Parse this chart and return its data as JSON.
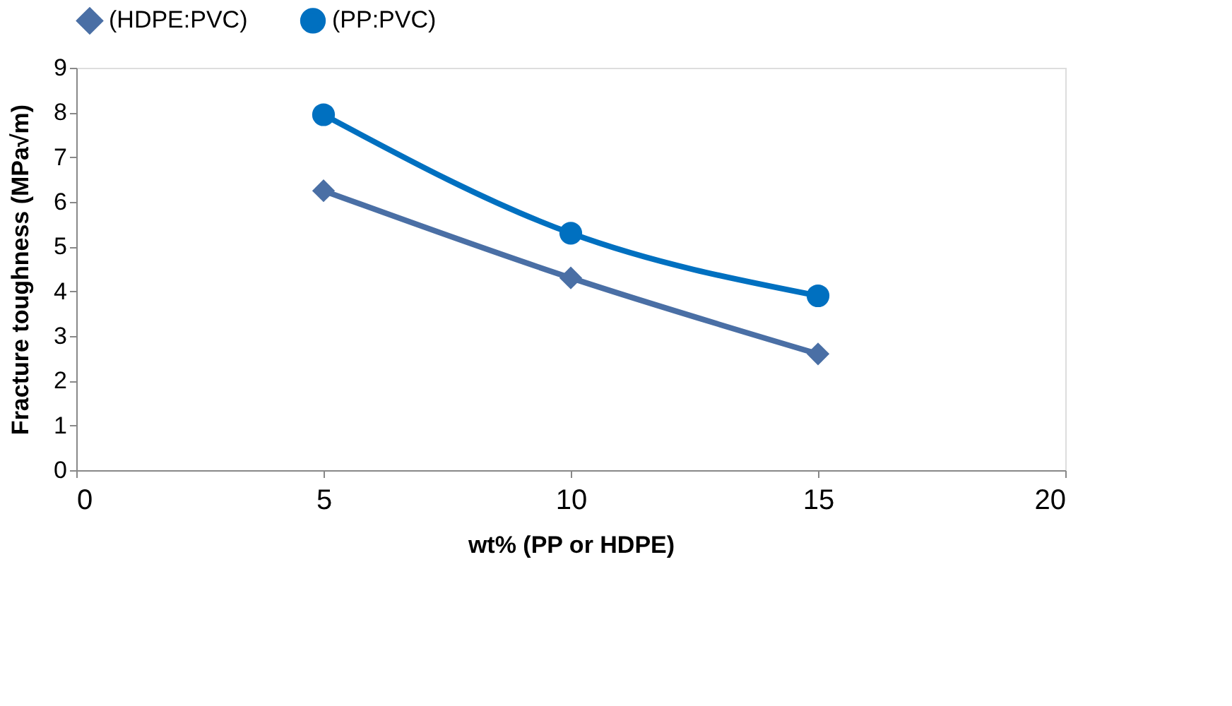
{
  "chart_data": {
    "type": "line",
    "xlabel": "wt% (PP or HDPE)",
    "ylabel": "Fracture toughness (MPa√m)",
    "x": [
      5,
      10,
      15
    ],
    "series": [
      {
        "name": "(HDPE:PVC)",
        "color": "#4a6fa5",
        "marker": "diamond",
        "values": [
          6.25,
          4.3,
          2.6
        ]
      },
      {
        "name": "(PP:PVC)",
        "color": "#0070c0",
        "marker": "circle",
        "values": [
          7.95,
          5.3,
          3.9
        ]
      }
    ],
    "xlim": [
      0,
      20
    ],
    "xticks": [
      0,
      5,
      10,
      15,
      20
    ],
    "ylim": [
      0,
      9
    ],
    "yticks": [
      0,
      1,
      2,
      3,
      4,
      5,
      6,
      7,
      8,
      9
    ],
    "grid": false,
    "legend": "top"
  }
}
